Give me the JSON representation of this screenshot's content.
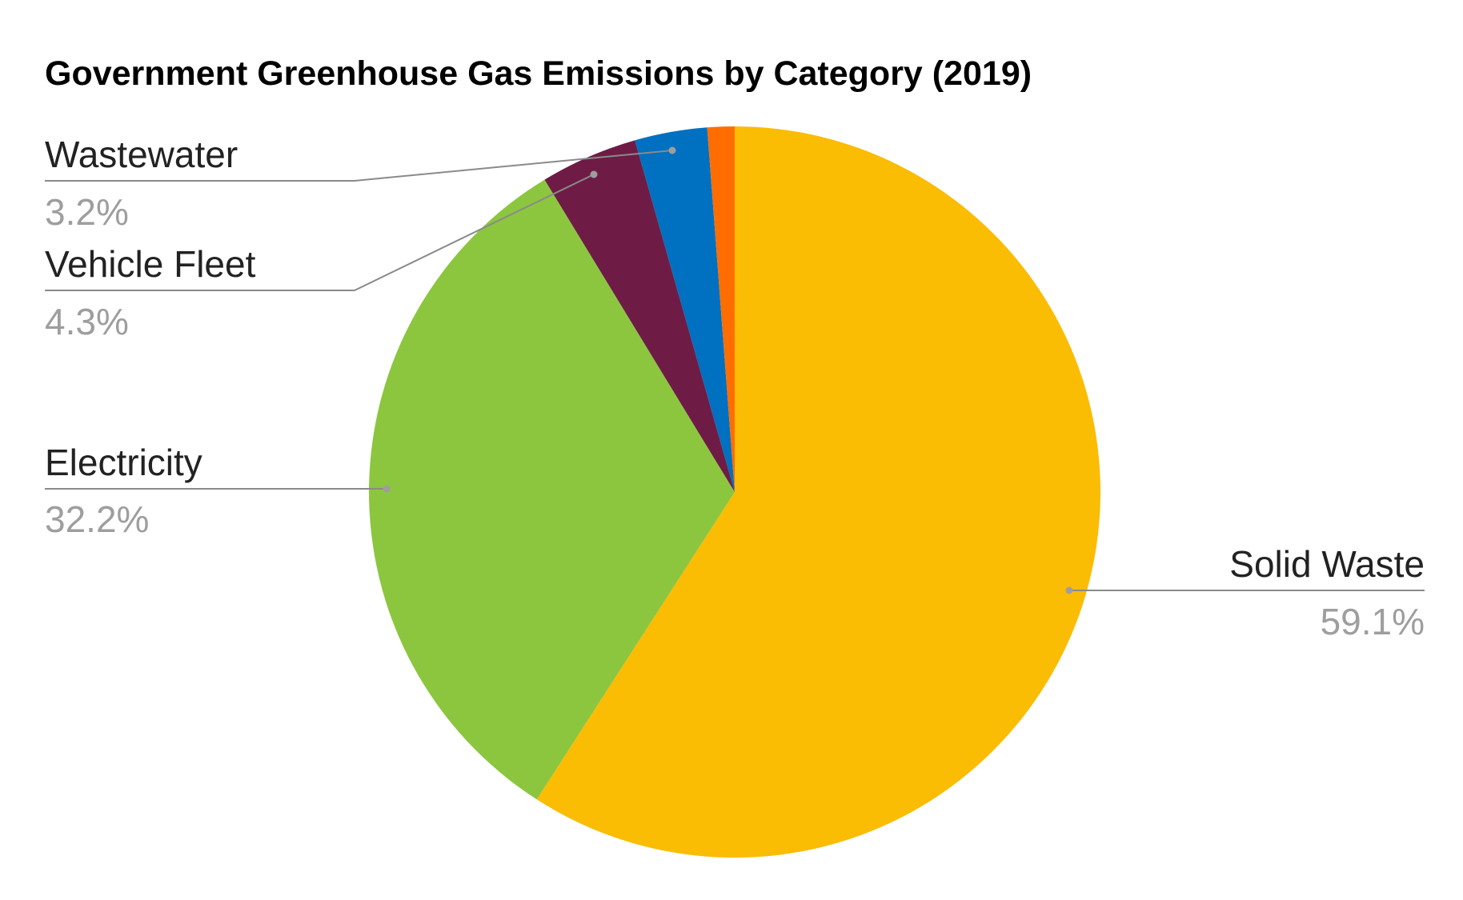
{
  "chart_data": {
    "type": "pie",
    "title": "Government Greenhouse Gas Emissions by Category (2019)",
    "categories": [
      "Solid Waste",
      "Electricity",
      "Vehicle Fleet",
      "Wastewater",
      null
    ],
    "values": [
      59.1,
      32.2,
      4.3,
      3.2,
      1.2
    ],
    "value_labels": [
      "59.1%",
      "32.2%",
      "4.3%",
      "3.2%",
      null
    ],
    "colors": [
      "#fbbc04",
      "#8cc63f",
      "#6e1c45",
      "#0070c0",
      "#ff6d01"
    ]
  }
}
